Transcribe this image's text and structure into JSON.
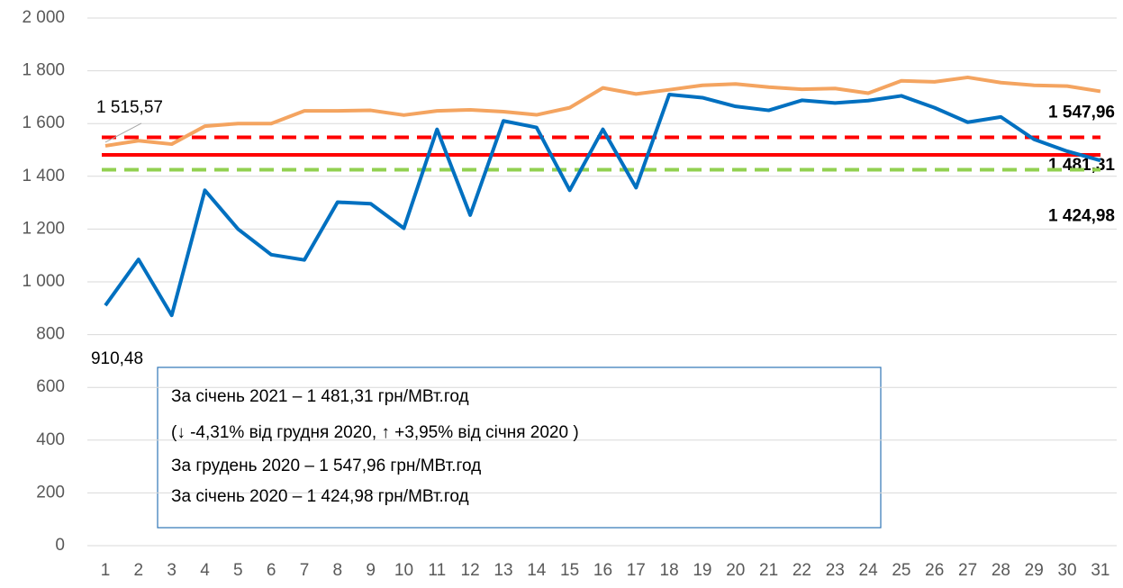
{
  "chart_data": {
    "type": "line",
    "categories": [
      "1",
      "2",
      "3",
      "4",
      "5",
      "6",
      "7",
      "8",
      "9",
      "10",
      "11",
      "12",
      "13",
      "14",
      "15",
      "16",
      "17",
      "18",
      "19",
      "20",
      "21",
      "22",
      "23",
      "24",
      "25",
      "26",
      "27",
      "28",
      "29",
      "30",
      "31"
    ],
    "series": [
      {
        "color": "#f4a460",
        "values": [
          1515.57,
          1535,
          1522,
          1590,
          1600,
          1600,
          1648,
          1648,
          1650,
          1632,
          1648,
          1652,
          1645,
          1633,
          1660,
          1735,
          1712,
          1728,
          1745,
          1750,
          1738,
          1730,
          1733,
          1715,
          1762,
          1758,
          1775,
          1755,
          1745,
          1742,
          1722
        ],
        "value_labels": [
          "1 515,57",
          null,
          null,
          null,
          null,
          null,
          null,
          null,
          null,
          null,
          null,
          null,
          null,
          null,
          null,
          null,
          null,
          null,
          null,
          null,
          null,
          null,
          null,
          null,
          null,
          null,
          null,
          null,
          null,
          null,
          null
        ]
      },
      {
        "color": "#0070c0",
        "values": [
          910.48,
          1085,
          873,
          1347,
          1200,
          1103,
          1083,
          1302,
          1296,
          1203,
          1578,
          1253,
          1610,
          1585,
          1347,
          1578,
          1357,
          1710,
          1698,
          1665,
          1650,
          1688,
          1678,
          1687,
          1705,
          1660,
          1605,
          1625,
          1540,
          1495,
          1460
        ],
        "value_labels": [
          "910,48",
          null,
          null,
          null,
          null,
          null,
          null,
          null,
          null,
          null,
          null,
          null,
          null,
          null,
          null,
          null,
          null,
          null,
          null,
          null,
          null,
          null,
          null,
          null,
          null,
          null,
          null,
          null,
          null,
          null,
          null
        ]
      }
    ],
    "reference_lines": [
      {
        "value": 1547.96,
        "label": "1 547,96",
        "color": "#ff0000",
        "style": "dashed"
      },
      {
        "value": 1481.31,
        "label": "1 481,31",
        "color": "#ff0000",
        "style": "solid"
      },
      {
        "value": 1424.98,
        "label": "1 424,98",
        "color": "#92d050",
        "style": "dashed"
      }
    ],
    "ylim": [
      0,
      2000
    ],
    "yticks": [
      0,
      200,
      400,
      600,
      800,
      {
        "value": 1000,
        "label": "1 000"
      },
      {
        "value": 1200,
        "label": "1 200"
      },
      {
        "value": 1400,
        "label": "1 400"
      },
      {
        "value": 1600,
        "label": "1 600"
      },
      {
        "value": 1800,
        "label": "1 800"
      },
      {
        "value": 2000,
        "label": "2 000"
      }
    ],
    "grid": true,
    "annotation_lines": [
      "За січень 2021 – 1 481,31 грн/МВт.год",
      "(↓ -4,31% від грудня 2020, ↑ +3,95% від січня 2020 )",
      "За грудень 2020 – 1 547,96 грн/МВт.год",
      "За січень 2020 – 1 424,98 грн/МВт.год"
    ]
  }
}
